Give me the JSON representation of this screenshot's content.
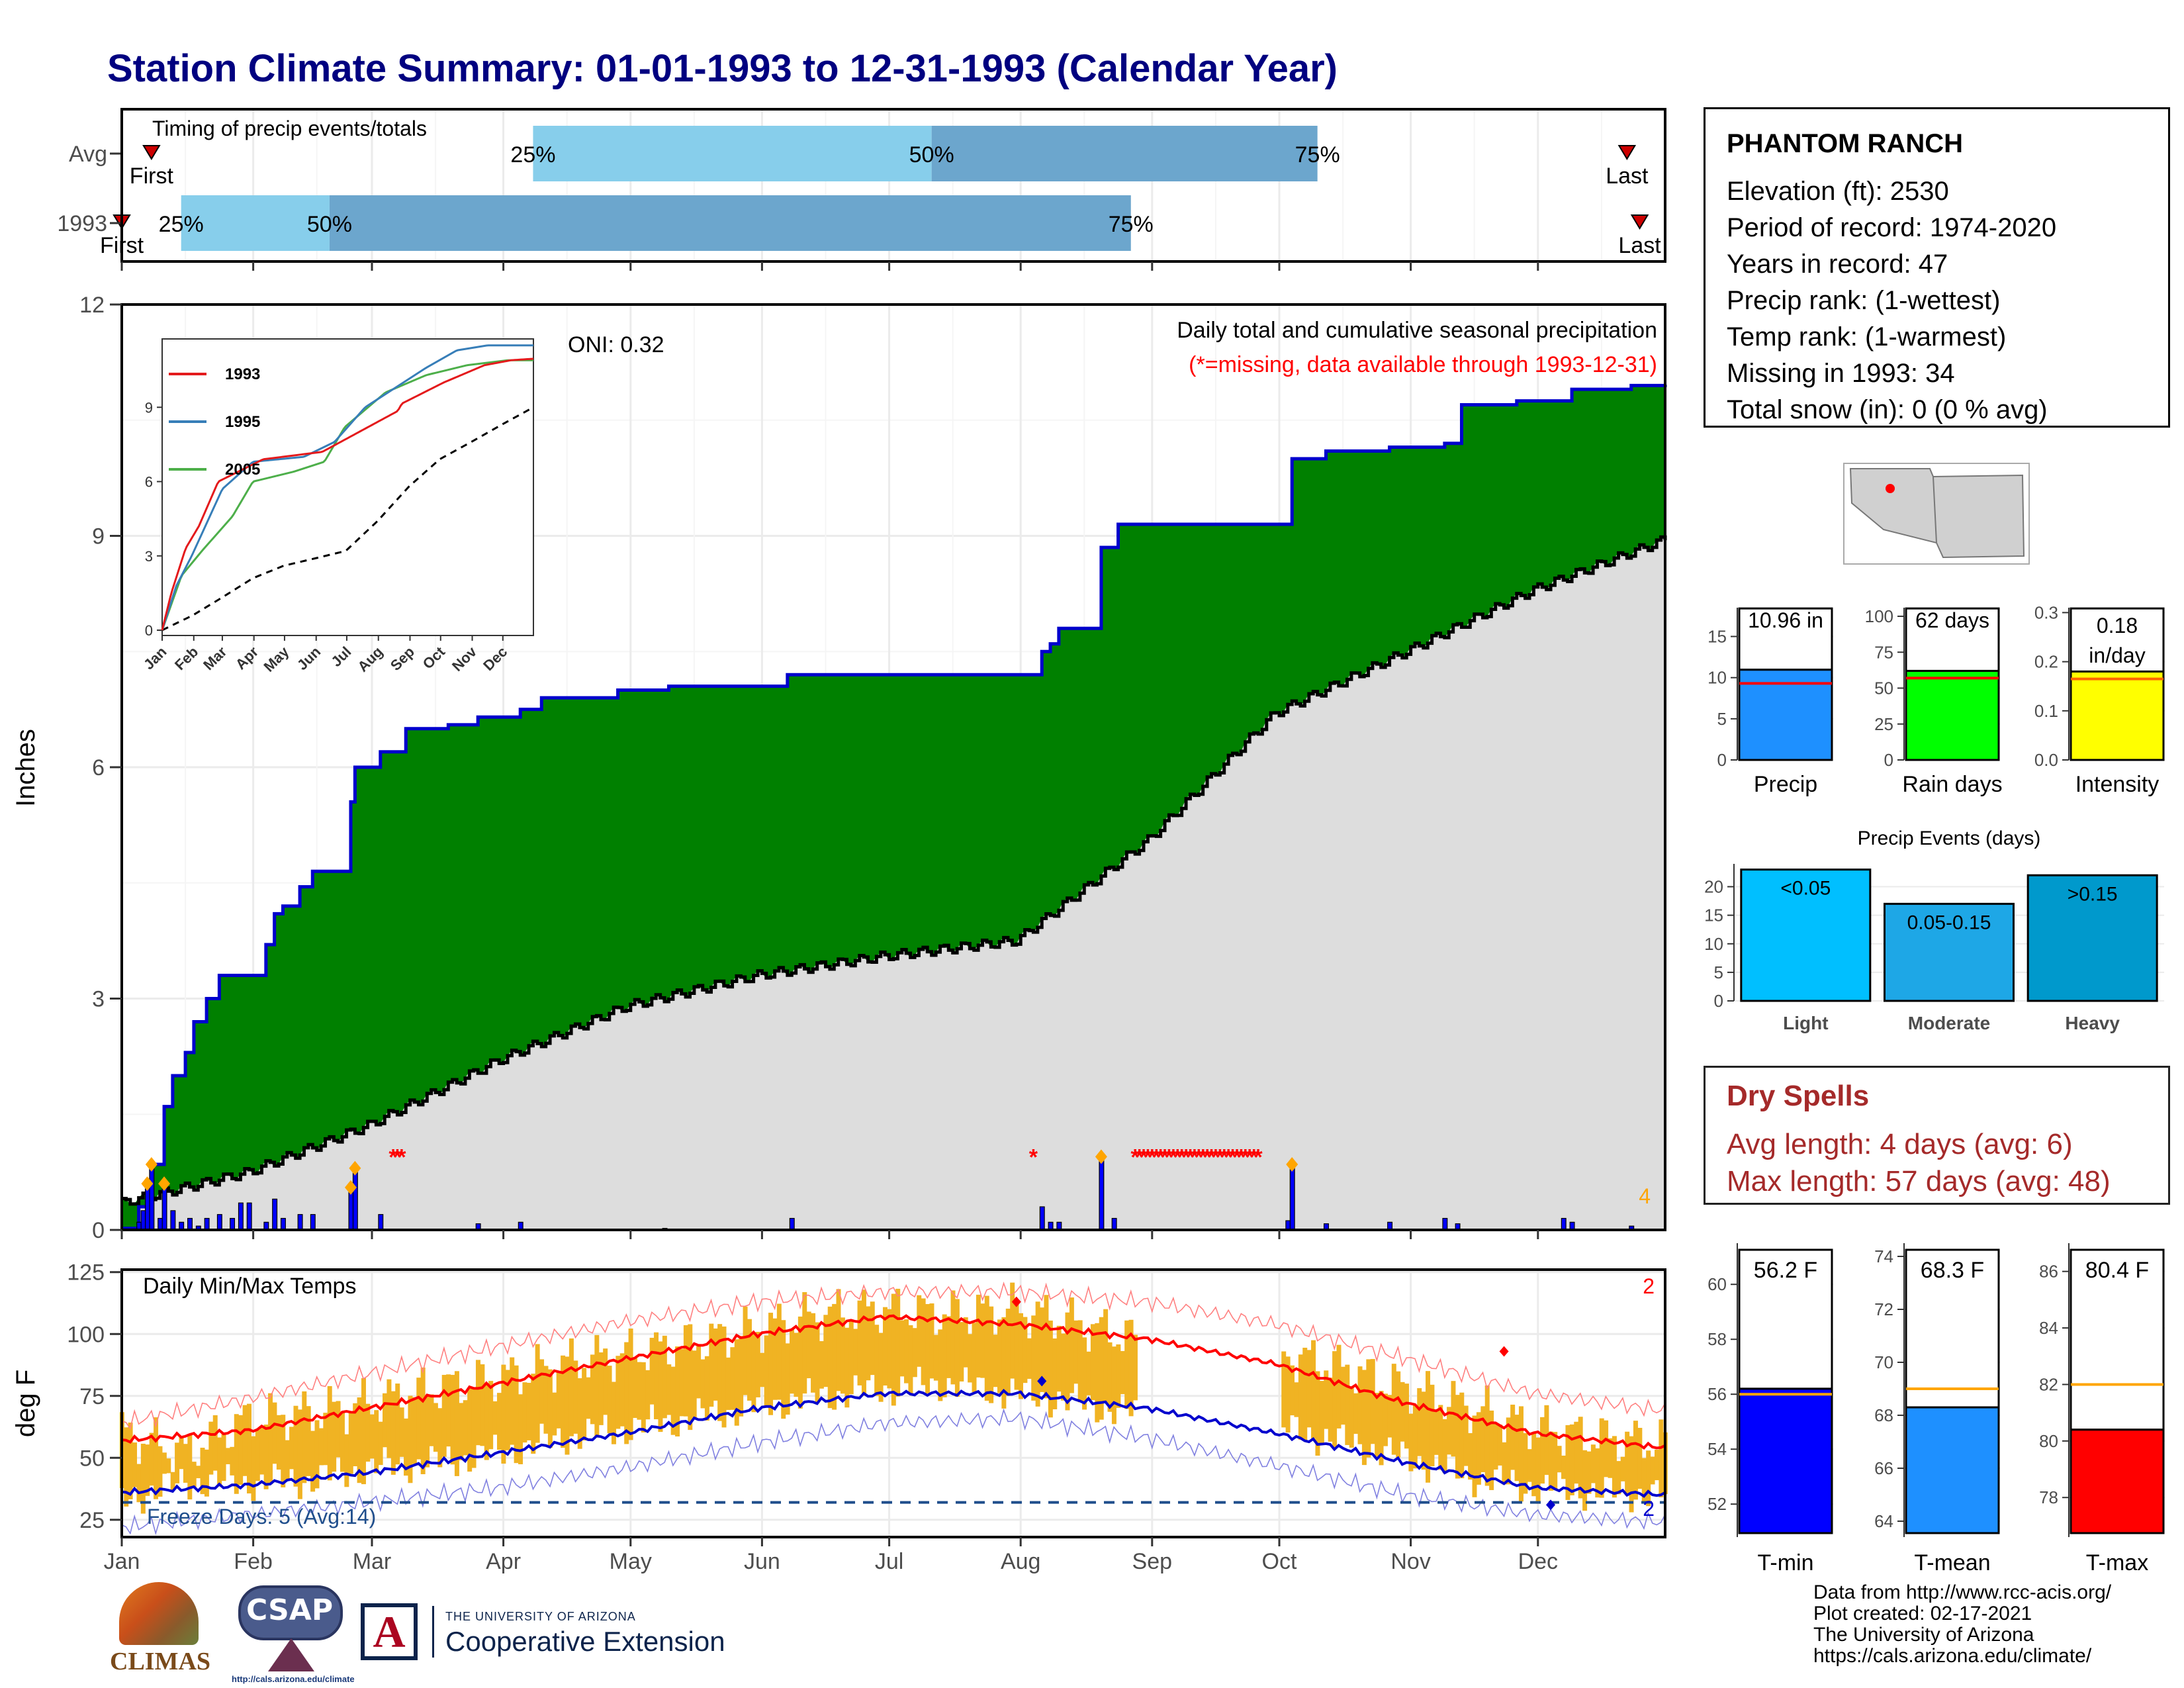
{
  "title": "Station Climate Summary: 01-01-1993 to 12-31-1993 (Calendar Year)",
  "months": [
    "Jan",
    "Feb",
    "Mar",
    "Apr",
    "May",
    "Jun",
    "Jul",
    "Aug",
    "Sep",
    "Oct",
    "Nov",
    "Dec"
  ],
  "timing": {
    "title": "Timing of precip events/totals",
    "rows": [
      {
        "label": "Avg",
        "first_day": 8,
        "p25_day": 98,
        "p50_day": 192,
        "p75_day": 283,
        "last_day": 356,
        "first_label": "First",
        "last_label": "Last",
        "p25_label": "25%",
        "p50_label": "50%",
        "p75_label": "75%"
      },
      {
        "label": "1993",
        "first_day": 1,
        "p25_day": 15,
        "p50_day": 50,
        "p75_day": 239,
        "last_day": 359,
        "first_label": "First",
        "last_label": "Last",
        "p25_label": "25%",
        "p50_label": "50%",
        "p75_label": "75%"
      }
    ]
  },
  "precip_panel": {
    "ylabel": "Inches",
    "yticks": [
      0,
      3,
      6,
      9,
      12
    ],
    "ylim": [
      0,
      12
    ],
    "caption": "Daily total and cumulative seasonal precipitation",
    "missing_note": "(*=missing, data available through 1993-12-31)",
    "oni": "ONI: 0.32",
    "corner_count": "4",
    "colors": {
      "excess": "#008000",
      "observed_line": "#0000cd",
      "normal_fill": "#dddddd",
      "daily_bar": "#0000ff",
      "missing": "#ff0000",
      "marker": "#ffa500"
    }
  },
  "inset": {
    "yticks": [
      0,
      3,
      6,
      9
    ],
    "months": [
      "Jan",
      "Feb",
      "Mar",
      "Apr",
      "May",
      "Jun",
      "Jul",
      "Aug",
      "Sep",
      "Oct",
      "Nov",
      "Dec"
    ],
    "legend": [
      {
        "name": "1993",
        "color": "#e41a1c"
      },
      {
        "name": "1995",
        "color": "#377eb8"
      },
      {
        "name": "2005",
        "color": "#4daf4a"
      }
    ]
  },
  "temp_panel": {
    "title": "Daily Min/Max Temps",
    "ylabel": "deg F",
    "yticks": [
      25,
      50,
      75,
      100,
      125
    ],
    "ylim": [
      18,
      126
    ],
    "freeze_text": "Freeze Days: 5 (Avg:14)",
    "freeze_line": 32,
    "count_top": "2",
    "count_bottom": "2",
    "colors": {
      "bars": "#f0b323",
      "max_avg": "#ff0000",
      "min_avg": "#0000cd",
      "max_record": "#ff8080",
      "min_record": "#8080e0"
    }
  },
  "station": {
    "name": "PHANTOM RANCH",
    "lines": [
      "Elevation (ft): 2530",
      "Period of record: 1974-2020",
      "Years in record: 47",
      "Precip rank:  (1-wettest)",
      "Temp rank:  (1-warmest)",
      "Missing in 1993: 34",
      "Total snow (in): 0 (0 % avg)"
    ]
  },
  "summary_bars": [
    {
      "label": "Precip",
      "value_text": "10.96 in",
      "value": 10.96,
      "avg": 9.3,
      "ymax": 18.5,
      "yticks": [
        0,
        5,
        10,
        15
      ],
      "color": "#1e90ff"
    },
    {
      "label": "Rain days",
      "value_text": "62 days",
      "value": 62,
      "avg": 57,
      "ymax": 106,
      "yticks": [
        0,
        25,
        50,
        75,
        100
      ],
      "color": "#00ff00"
    },
    {
      "label": "Intensity",
      "value_text": "0.18\nin/day",
      "value": 0.18,
      "avg": 0.165,
      "ymax": 0.31,
      "yticks": [
        0.0,
        0.1,
        0.2,
        0.3
      ],
      "color": "#ffff00"
    }
  ],
  "precip_events": {
    "title": "Precip Events (days)",
    "yticks": [
      0,
      5,
      10,
      15,
      20
    ],
    "ymax": 24,
    "bars": [
      {
        "label": "Light",
        "tag": "<0.05",
        "value": 23,
        "color": "#00bfff"
      },
      {
        "label": "Moderate",
        "tag": "0.05-0.15",
        "value": 17,
        "color": "#1ea7e6"
      },
      {
        "label": "Heavy",
        "tag": ">0.15",
        "value": 22,
        "color": "#0099cc"
      }
    ]
  },
  "dry_spells": {
    "title": "Dry Spells",
    "avg_line": "Avg length: 4 days (avg: 6)",
    "max_line": "Max length: 57 days (avg: 48)"
  },
  "temp_bars": [
    {
      "label": "T-min",
      "value_text": "56.2 F",
      "value": 56.2,
      "avg": 56.0,
      "ymin": 50.8,
      "ymax": 61.5,
      "yticks": [
        52,
        54,
        56,
        58,
        60
      ],
      "color": "#0000ff"
    },
    {
      "label": "T-mean",
      "value_text": "68.3 F",
      "value": 68.3,
      "avg": 69.0,
      "ymin": 63.4,
      "ymax": 74.5,
      "yticks": [
        64,
        66,
        68,
        70,
        72,
        74
      ],
      "color": "#1e90ff"
    },
    {
      "label": "T-max",
      "value_text": "80.4 F",
      "value": 80.4,
      "avg": 82.0,
      "ymin": 76.6,
      "ymax": 87.0,
      "yticks": [
        78,
        80,
        82,
        84,
        86
      ],
      "color": "#ff0000"
    }
  ],
  "footer": {
    "lines": [
      "Data from http://www.rcc-acis.org/",
      "Plot created: 02-17-2021",
      "The University of Arizona",
      "https://cals.arizona.edu/climate/"
    ]
  },
  "logos": {
    "climas": "CLIMAS",
    "csap": "CSAP",
    "csap_url": "http://cals.arizona.edu/climate",
    "ua_small": "THE UNIVERSITY OF ARIZONA",
    "ua_big": "Cooperative Extension"
  },
  "chart_data": {
    "type": "area",
    "title": "Daily total and cumulative seasonal precipitation",
    "xlabel": "",
    "ylabel": "Inches",
    "ylim": [
      0,
      12
    ],
    "cumulative_1993_steps": [
      [
        1,
        0.02
      ],
      [
        5,
        0.3
      ],
      [
        8,
        0.85
      ],
      [
        11,
        1.6
      ],
      [
        13,
        2.0
      ],
      [
        16,
        2.3
      ],
      [
        18,
        2.7
      ],
      [
        21,
        3.0
      ],
      [
        24,
        3.3
      ],
      [
        35,
        3.7
      ],
      [
        37,
        4.1
      ],
      [
        39,
        4.2
      ],
      [
        43,
        4.45
      ],
      [
        46,
        4.65
      ],
      [
        53,
        4.65
      ],
      [
        55,
        5.55
      ],
      [
        56,
        6.0
      ],
      [
        60,
        6.0
      ],
      [
        62,
        6.2
      ],
      [
        68,
        6.5
      ],
      [
        78,
        6.55
      ],
      [
        85,
        6.65
      ],
      [
        95,
        6.75
      ],
      [
        100,
        6.9
      ],
      [
        110,
        6.9
      ],
      [
        118,
        7.0
      ],
      [
        130,
        7.05
      ],
      [
        155,
        7.05
      ],
      [
        158,
        7.2
      ],
      [
        190,
        7.2
      ],
      [
        216,
        7.2
      ],
      [
        218,
        7.5
      ],
      [
        220,
        7.6
      ],
      [
        222,
        7.8
      ],
      [
        229,
        7.8
      ],
      [
        232,
        8.85
      ],
      [
        236,
        9.15
      ],
      [
        240,
        9.15
      ],
      [
        275,
        9.15
      ],
      [
        277,
        10.0
      ],
      [
        285,
        10.1
      ],
      [
        300,
        10.15
      ],
      [
        313,
        10.2
      ],
      [
        317,
        10.7
      ],
      [
        330,
        10.75
      ],
      [
        341,
        10.75
      ],
      [
        343,
        10.9
      ],
      [
        357,
        10.95
      ],
      [
        365,
        10.96
      ]
    ],
    "normal_cumulative": [
      [
        1,
        0.35
      ],
      [
        31,
        0.75
      ],
      [
        59,
        1.35
      ],
      [
        90,
        2.2
      ],
      [
        120,
        2.9
      ],
      [
        151,
        3.3
      ],
      [
        181,
        3.55
      ],
      [
        212,
        3.75
      ],
      [
        243,
        5.05
      ],
      [
        273,
        6.7
      ],
      [
        304,
        7.5
      ],
      [
        334,
        8.3
      ],
      [
        365,
        8.95
      ]
    ],
    "daily_precip": [
      [
        5,
        0.1
      ],
      [
        6,
        0.25
      ],
      [
        7,
        0.6
      ],
      [
        8,
        0.85
      ],
      [
        10,
        0.15
      ],
      [
        11,
        0.6
      ],
      [
        13,
        0.25
      ],
      [
        15,
        0.1
      ],
      [
        17,
        0.15
      ],
      [
        19,
        0.05
      ],
      [
        21,
        0.15
      ],
      [
        24,
        0.2
      ],
      [
        27,
        0.15
      ],
      [
        29,
        0.35
      ],
      [
        31,
        0.35
      ],
      [
        35,
        0.1
      ],
      [
        37,
        0.4
      ],
      [
        39,
        0.15
      ],
      [
        43,
        0.2
      ],
      [
        46,
        0.2
      ],
      [
        55,
        0.55
      ],
      [
        56,
        0.8
      ],
      [
        62,
        0.2
      ],
      [
        85,
        0.08
      ],
      [
        95,
        0.1
      ],
      [
        129,
        0.02
      ],
      [
        159,
        0.15
      ],
      [
        218,
        0.3
      ],
      [
        220,
        0.1
      ],
      [
        222,
        0.1
      ],
      [
        232,
        0.95
      ],
      [
        235,
        0.15
      ],
      [
        276,
        0.12
      ],
      [
        277,
        0.85
      ],
      [
        285,
        0.08
      ],
      [
        300,
        0.1
      ],
      [
        313,
        0.15
      ],
      [
        316,
        0.08
      ],
      [
        341,
        0.15
      ],
      [
        343,
        0.1
      ],
      [
        357,
        0.05
      ]
    ],
    "missing_days": [
      65,
      66,
      67,
      216,
      240,
      241,
      242,
      243,
      244,
      245,
      246,
      247,
      248,
      249,
      250,
      251,
      252,
      253,
      254,
      255,
      256,
      257,
      258,
      259,
      260,
      261,
      262,
      263,
      264,
      265,
      266,
      267,
      268,
      269
    ],
    "temperature": {
      "avg_max": [
        [
          1,
          57
        ],
        [
          31,
          61
        ],
        [
          59,
          70
        ],
        [
          90,
          80
        ],
        [
          120,
          90
        ],
        [
          151,
          100
        ],
        [
          181,
          107
        ],
        [
          212,
          104
        ],
        [
          243,
          98
        ],
        [
          273,
          88
        ],
        [
          304,
          72
        ],
        [
          334,
          60
        ],
        [
          365,
          54
        ]
      ],
      "avg_min": [
        [
          1,
          36
        ],
        [
          31,
          39
        ],
        [
          59,
          44
        ],
        [
          90,
          52
        ],
        [
          120,
          60
        ],
        [
          151,
          70
        ],
        [
          181,
          76
        ],
        [
          212,
          76
        ],
        [
          243,
          70
        ],
        [
          273,
          60
        ],
        [
          304,
          48
        ],
        [
          334,
          38
        ],
        [
          365,
          35
        ]
      ],
      "record_max": [
        [
          1,
          64
        ],
        [
          31,
          74
        ],
        [
          59,
          84
        ],
        [
          90,
          95
        ],
        [
          120,
          105
        ],
        [
          151,
          113
        ],
        [
          181,
          117
        ],
        [
          212,
          117
        ],
        [
          243,
          113
        ],
        [
          273,
          104
        ],
        [
          304,
          90
        ],
        [
          334,
          76
        ],
        [
          365,
          69
        ]
      ],
      "record_min": [
        [
          1,
          22
        ],
        [
          31,
          27
        ],
        [
          59,
          32
        ],
        [
          90,
          38
        ],
        [
          120,
          46
        ],
        [
          151,
          56
        ],
        [
          181,
          64
        ],
        [
          212,
          66
        ],
        [
          243,
          58
        ],
        [
          273,
          47
        ],
        [
          304,
          35
        ],
        [
          334,
          27
        ],
        [
          365,
          24
        ]
      ],
      "daily_1993": [
        [
          1,
          60,
          33
        ],
        [
          16,
          52,
          40
        ],
        [
          31,
          66,
          40
        ],
        [
          46,
          68,
          41
        ],
        [
          59,
          72,
          46
        ],
        [
          75,
          78,
          48
        ],
        [
          90,
          82,
          52
        ],
        [
          105,
          88,
          58
        ],
        [
          120,
          92,
          62
        ],
        [
          135,
          96,
          66
        ],
        [
          151,
          102,
          71
        ],
        [
          166,
          108,
          75
        ],
        [
          181,
          110,
          78
        ],
        [
          196,
          108,
          80
        ],
        [
          212,
          110,
          76
        ],
        [
          227,
          104,
          72
        ],
        [
          240,
          98,
          68
        ],
        [
          275,
          92,
          62
        ],
        [
          290,
          86,
          56
        ],
        [
          304,
          78,
          50
        ],
        [
          320,
          70,
          42
        ],
        [
          334,
          62,
          38
        ],
        [
          350,
          58,
          36
        ],
        [
          365,
          56,
          35
        ]
      ],
      "missing_temp_days": [
        241,
        242,
        243,
        244,
        245,
        246,
        247,
        248,
        249,
        250,
        251,
        252,
        253,
        254,
        255,
        256,
        257,
        258,
        259,
        260,
        261,
        262,
        263,
        264,
        265,
        266,
        267,
        268,
        269,
        270,
        271,
        272,
        273,
        274
      ]
    },
    "inset_series": {
      "1993": [
        [
          1,
          0
        ],
        [
          10,
          1.5
        ],
        [
          24,
          3.3
        ],
        [
          37,
          4.2
        ],
        [
          56,
          6.0
        ],
        [
          100,
          6.9
        ],
        [
          158,
          7.2
        ],
        [
          232,
          8.85
        ],
        [
          236,
          9.15
        ],
        [
          277,
          10.0
        ],
        [
          317,
          10.7
        ],
        [
          343,
          10.9
        ],
        [
          365,
          10.96
        ]
      ],
      "1995": [
        [
          1,
          0
        ],
        [
          15,
          1.8
        ],
        [
          30,
          3.0
        ],
        [
          60,
          5.7
        ],
        [
          90,
          6.8
        ],
        [
          140,
          7.0
        ],
        [
          170,
          7.6
        ],
        [
          200,
          9.0
        ],
        [
          230,
          9.8
        ],
        [
          260,
          10.6
        ],
        [
          290,
          11.3
        ],
        [
          320,
          11.5
        ],
        [
          365,
          11.5
        ]
      ],
      "2005": [
        [
          1,
          0
        ],
        [
          20,
          2.2
        ],
        [
          40,
          3.2
        ],
        [
          70,
          4.6
        ],
        [
          90,
          6.0
        ],
        [
          130,
          6.4
        ],
        [
          160,
          6.8
        ],
        [
          180,
          8.2
        ],
        [
          220,
          9.6
        ],
        [
          260,
          10.3
        ],
        [
          300,
          10.7
        ],
        [
          340,
          10.9
        ],
        [
          365,
          10.9
        ]
      ],
      "average": [
        [
          1,
          0
        ],
        [
          31,
          0.6
        ],
        [
          59,
          1.3
        ],
        [
          90,
          2.1
        ],
        [
          120,
          2.6
        ],
        [
          151,
          2.9
        ],
        [
          181,
          3.2
        ],
        [
          212,
          4.4
        ],
        [
          243,
          5.8
        ],
        [
          273,
          6.9
        ],
        [
          304,
          7.6
        ],
        [
          334,
          8.3
        ],
        [
          365,
          9.0
        ]
      ]
    }
  }
}
